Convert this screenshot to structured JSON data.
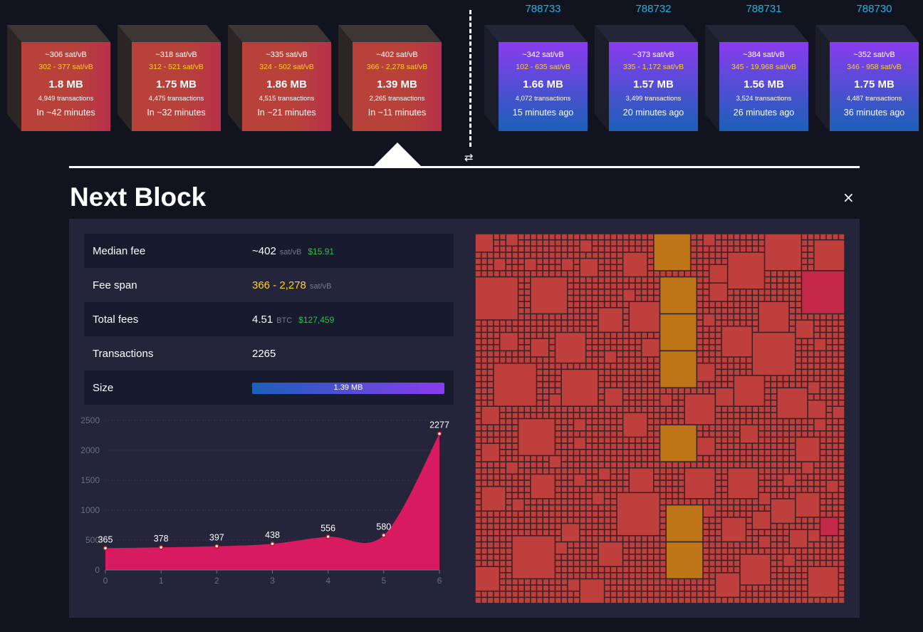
{
  "mempool_blocks": [
    {
      "median": "~306 sat/vB",
      "span": "302 - 377 sat/vB",
      "size": "1.8 MB",
      "tx": "4,949 transactions",
      "time": "In ~42 minutes"
    },
    {
      "median": "~318 sat/vB",
      "span": "312 - 521 sat/vB",
      "size": "1.75 MB",
      "tx": "4,475 transactions",
      "time": "In ~32 minutes"
    },
    {
      "median": "~335 sat/vB",
      "span": "324 - 502 sat/vB",
      "size": "1.86 MB",
      "tx": "4,515 transactions",
      "time": "In ~21 minutes"
    },
    {
      "median": "~402 sat/vB",
      "span": "366 - 2,278 sat/vB",
      "size": "1.39 MB",
      "tx": "2,265 transactions",
      "time": "In ~11 minutes"
    }
  ],
  "mined_blocks": [
    {
      "height": "788733",
      "median": "~342 sat/vB",
      "span": "102 - 635 sat/vB",
      "size": "1.66 MB",
      "tx": "4,072 transactions",
      "time": "15 minutes ago"
    },
    {
      "height": "788732",
      "median": "~373 sat/vB",
      "span": "335 - 1,172 sat/vB",
      "size": "1.57 MB",
      "tx": "3,499 transactions",
      "time": "20 minutes ago"
    },
    {
      "height": "788731",
      "median": "~384 sat/vB",
      "span": "345 - 19,968 sat/vB",
      "size": "1.56 MB",
      "tx": "3,524 transactions",
      "time": "26 minutes ago"
    },
    {
      "height": "788730",
      "median": "~352 sat/vB",
      "span": "346 - 958 sat/vB",
      "size": "1.75 MB",
      "tx": "4,487 transactions",
      "time": "36 minutes ago"
    }
  ],
  "icons": {
    "swap": "⇄",
    "close": "×"
  },
  "detail": {
    "title": "Next Block",
    "median_label": "Median fee",
    "median_value": "~402",
    "median_unit": "sat/vB",
    "median_usd": "$15.91",
    "span_label": "Fee span",
    "span_value": "366 - 2,278",
    "span_unit": "sat/vB",
    "fees_label": "Total fees",
    "fees_value": "4.51",
    "fees_unit": "BTC",
    "fees_usd": "$127,459",
    "tx_label": "Transactions",
    "tx_value": "2265",
    "size_label": "Size",
    "size_value": "1.39 MB",
    "size_fill": 1.0
  },
  "colors": {
    "mempool": "#b8423a",
    "mined_top": "#8a3bf0",
    "mined_bottom": "#1b60b8",
    "area": "#d81b60",
    "height": "#1bb5e0",
    "span": "#ffd21e",
    "usd": "#28c24c"
  },
  "chart_data": {
    "type": "area",
    "x": [
      0,
      1,
      2,
      3,
      4,
      5,
      6
    ],
    "values": [
      365,
      378,
      397,
      438,
      556,
      580,
      2277
    ],
    "yticks": [
      0,
      500,
      1000,
      1500,
      2000,
      2500
    ],
    "ylim": [
      0,
      2500
    ],
    "grid": true
  }
}
